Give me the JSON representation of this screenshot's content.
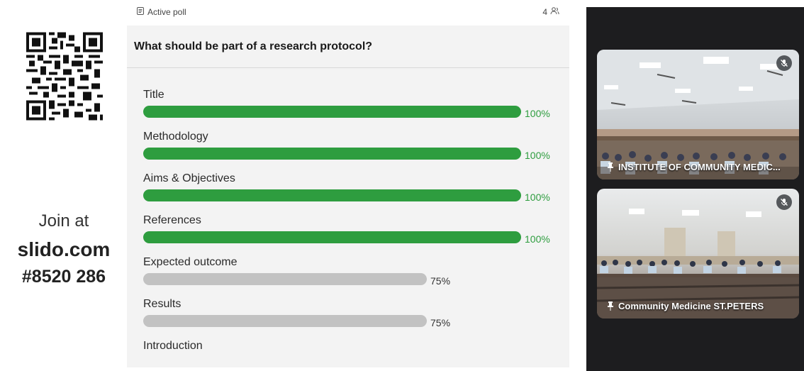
{
  "join": {
    "join_at": "Join at",
    "url": "slido.com",
    "code": "#8520 286"
  },
  "poll": {
    "status_label": "Active poll",
    "participants_count": "4",
    "question": "What should be part of a research protocol?",
    "options": [
      {
        "label": "Title",
        "percent_text": "100%",
        "percent": 100,
        "leading": true
      },
      {
        "label": "Methodology",
        "percent_text": "100%",
        "percent": 100,
        "leading": true
      },
      {
        "label": "Aims & Objectives",
        "percent_text": "100%",
        "percent": 100,
        "leading": true
      },
      {
        "label": "References",
        "percent_text": "100%",
        "percent": 100,
        "leading": true
      },
      {
        "label": "Expected outcome",
        "percent_text": "75%",
        "percent": 75,
        "leading": false
      },
      {
        "label": "Results",
        "percent_text": "75%",
        "percent": 75,
        "leading": false
      },
      {
        "label": "Introduction"
      }
    ]
  },
  "video": {
    "tiles": [
      {
        "name": "INSTITUTE OF COMMUNITY MEDIC...",
        "muted": true
      },
      {
        "name": "Community Medicine ST.PETERS",
        "muted": true
      }
    ]
  },
  "colors": {
    "leading_bar": "#2e9d3f",
    "other_bar": "#c2c2c2",
    "video_background": "#1d1d1f"
  }
}
